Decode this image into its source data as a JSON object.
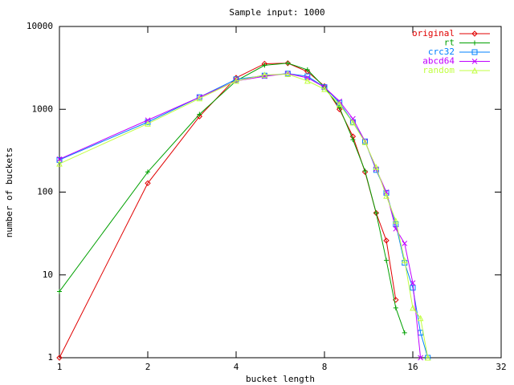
{
  "chart_data": {
    "type": "line",
    "title": "Sample input: 1000",
    "x_label": "bucket length",
    "y_label": "number of buckets",
    "xlog": true,
    "ylog": true,
    "xlim": [
      1,
      32
    ],
    "ylim": [
      1,
      10000
    ],
    "xticks": [
      1,
      2,
      4,
      8,
      16,
      32
    ],
    "yticks": [
      1,
      10,
      100,
      1000,
      10000
    ],
    "legend": "top-right",
    "series": [
      {
        "name": "original",
        "color": "#e00000",
        "marker": "diamond",
        "x": [
          1,
          2,
          3,
          4,
          5,
          6,
          7,
          8,
          9,
          10,
          11,
          12,
          13,
          14
        ],
        "values": [
          1,
          128,
          820,
          2400,
          3550,
          3600,
          2850,
          1900,
          1000,
          470,
          175,
          56,
          26,
          5
        ]
      },
      {
        "name": "rt",
        "color": "#00a000",
        "marker": "plus",
        "x": [
          1,
          2,
          3,
          4,
          5,
          6,
          7,
          8,
          9,
          10,
          11,
          12,
          13,
          14,
          15
        ],
        "values": [
          6.3,
          175,
          870,
          2200,
          3400,
          3600,
          3000,
          1850,
          1050,
          430,
          180,
          56,
          15,
          4,
          2
        ]
      },
      {
        "name": "crc32",
        "color": "#0080ff",
        "marker": "square",
        "x": [
          1,
          2,
          3,
          4,
          5,
          6,
          7,
          8,
          9,
          10,
          11,
          12,
          13,
          14,
          15,
          16,
          17,
          18
        ],
        "values": [
          245,
          700,
          1400,
          2300,
          2550,
          2700,
          2500,
          1850,
          1200,
          700,
          410,
          185,
          98,
          41,
          14,
          7,
          2,
          1
        ]
      },
      {
        "name": "abcd64",
        "color": "#c000ff",
        "marker": "cross",
        "x": [
          1,
          2,
          3,
          4,
          5,
          6,
          7,
          8,
          9,
          10,
          11,
          12,
          13,
          14,
          15,
          16,
          17
        ],
        "values": [
          250,
          740,
          1400,
          2200,
          2500,
          2700,
          2400,
          1850,
          1250,
          770,
          410,
          190,
          100,
          36,
          24,
          8,
          1
        ]
      },
      {
        "name": "random",
        "color": "#c0ff40",
        "marker": "triangle",
        "x": [
          1,
          2,
          3,
          4,
          5,
          6,
          7,
          8,
          9,
          10,
          11,
          12,
          13,
          14,
          15,
          16,
          17,
          18
        ],
        "values": [
          220,
          670,
          1350,
          2200,
          2600,
          2650,
          2200,
          1750,
          1150,
          690,
          400,
          200,
          90,
          45,
          15,
          4,
          3,
          1
        ]
      }
    ]
  }
}
